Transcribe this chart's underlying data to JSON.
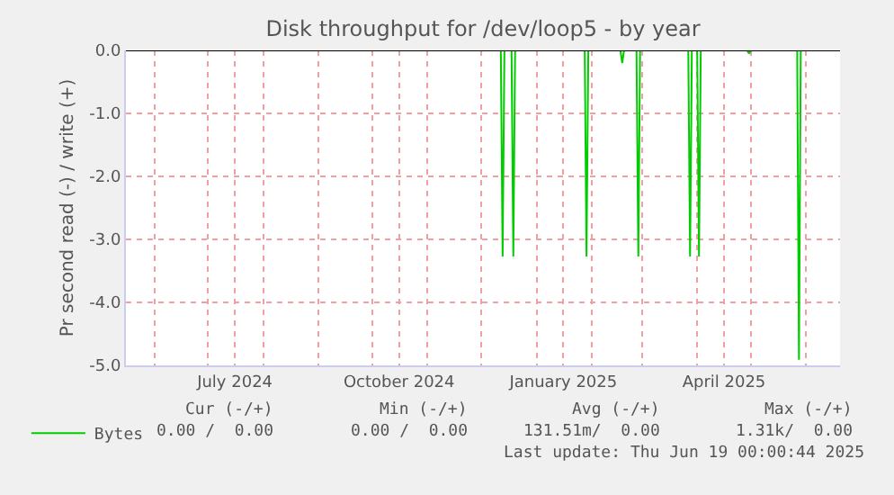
{
  "chart_data": {
    "type": "line",
    "title": "Disk throughput for /dev/loop5 - by year",
    "ylabel": "Pr second read (-) / write (+)",
    "xlim": [
      "2024-05-16",
      "2025-06-20"
    ],
    "xticks": [
      {
        "value": "2024-06-01",
        "label": null
      },
      {
        "value": "2024-07-01",
        "label": null
      },
      {
        "value": "2024-07-16",
        "label": "July 2024"
      },
      {
        "value": "2024-08-01",
        "label": null
      },
      {
        "value": "2024-09-01",
        "label": null
      },
      {
        "value": "2024-10-01",
        "label": null
      },
      {
        "value": "2024-10-16",
        "label": "October 2024"
      },
      {
        "value": "2024-11-01",
        "label": null
      },
      {
        "value": "2024-12-01",
        "label": null
      },
      {
        "value": "2025-01-01",
        "label": null
      },
      {
        "value": "2025-01-16",
        "label": "January 2025"
      },
      {
        "value": "2025-02-01",
        "label": null
      },
      {
        "value": "2025-03-01",
        "label": null
      },
      {
        "value": "2025-04-01",
        "label": null
      },
      {
        "value": "2025-04-16",
        "label": "April 2025"
      },
      {
        "value": "2025-05-01",
        "label": null
      },
      {
        "value": "2025-06-01",
        "label": null
      }
    ],
    "ylim": [
      -5,
      0
    ],
    "yticks": [
      {
        "value": -5,
        "label": "-5.0"
      },
      {
        "value": -4,
        "label": "-4.0"
      },
      {
        "value": -3,
        "label": "-3.0"
      },
      {
        "value": -2,
        "label": "-2.0"
      },
      {
        "value": -1,
        "label": "-1.0"
      },
      {
        "value": 0,
        "label": "0.0"
      }
    ],
    "grid": true,
    "legend": "bottom left",
    "marker": "none",
    "line_style": "solid",
    "series": [
      {
        "name": "Bytes",
        "color": "#00cc00",
        "x": [
          "2024-05-16",
          "2024-12-12",
          "2024-12-13",
          "2024-12-14",
          "2024-12-18",
          "2024-12-19",
          "2024-12-20",
          "2025-01-28",
          "2025-01-29",
          "2025-01-30",
          "2025-02-17",
          "2025-02-18",
          "2025-02-19",
          "2025-02-26",
          "2025-02-27",
          "2025-02-28",
          "2025-03-27",
          "2025-03-28",
          "2025-03-29",
          "2025-04-01",
          "2025-04-02",
          "2025-04-03",
          "2025-04-29",
          "2025-04-30",
          "2025-05-01",
          "2025-05-27",
          "2025-05-28",
          "2025-05-29",
          "2025-06-19"
        ],
        "values": [
          0,
          0,
          -3.27,
          0,
          0,
          -3.27,
          0,
          0,
          -3.27,
          0,
          0,
          -0.2,
          0,
          0,
          -3.27,
          0,
          0,
          -3.27,
          0,
          0,
          -3.27,
          0,
          0,
          -0.05,
          0,
          0,
          -4.91,
          0,
          0
        ]
      }
    ],
    "annotations": [
      "Cur (-/+)",
      "Min (-/+)",
      "Avg (-/+)",
      "Max (-/+)",
      "0.00 /  0.00",
      "0.00 /  0.00",
      "131.51m/  0.00",
      "1.31k/  0.00",
      "Last update: Thu Jun 19 00:00:44 2025"
    ]
  }
}
